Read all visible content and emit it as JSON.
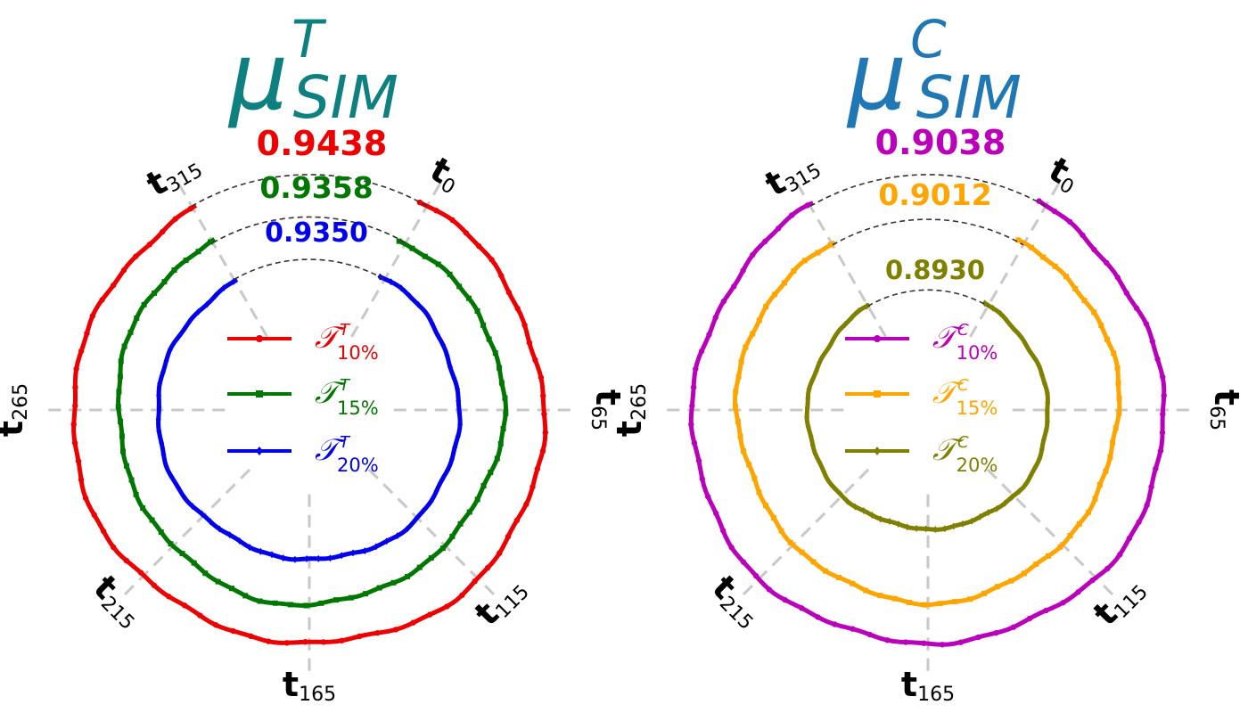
{
  "chart_data": [
    {
      "type": "polar-line",
      "panel": "left",
      "title": {
        "symbol": "μ",
        "superscript": "T",
        "subscript": "SIM"
      },
      "title_color": "#0f8080",
      "angular_ticks": [
        {
          "main": "t",
          "sub": "0"
        },
        {
          "main": "t",
          "sub": "65"
        },
        {
          "main": "t",
          "sub": "115"
        },
        {
          "main": "t",
          "sub": "165"
        },
        {
          "main": "t",
          "sub": "215"
        },
        {
          "main": "t",
          "sub": "265"
        },
        {
          "main": "t",
          "sub": "315"
        }
      ],
      "series": [
        {
          "name": {
            "symbol": "𝒯",
            "superscript": "T",
            "subscript": "10%"
          },
          "score": "0.9438",
          "color": "#ee0000",
          "marker": "circle",
          "radius": 1.0
        },
        {
          "name": {
            "symbol": "𝒯",
            "superscript": "T",
            "subscript": "15%"
          },
          "score": "0.9358",
          "color": "#007700",
          "marker": "square",
          "radius": 0.82
        },
        {
          "name": {
            "symbol": "𝒯",
            "superscript": "T",
            "subscript": "20%"
          },
          "score": "0.9350",
          "color": "#0000ee",
          "marker": "diamond",
          "radius": 0.64
        }
      ]
    },
    {
      "type": "polar-line",
      "panel": "right",
      "title": {
        "symbol": "μ",
        "superscript": "C",
        "subscript": "SIM"
      },
      "title_color": "#1f77b4",
      "angular_ticks": [
        {
          "main": "t",
          "sub": "0"
        },
        {
          "main": "t",
          "sub": "65"
        },
        {
          "main": "t",
          "sub": "115"
        },
        {
          "main": "t",
          "sub": "165"
        },
        {
          "main": "t",
          "sub": "215"
        },
        {
          "main": "t",
          "sub": "265"
        },
        {
          "main": "t",
          "sub": "315"
        }
      ],
      "series": [
        {
          "name": {
            "symbol": "𝒯",
            "superscript": "C",
            "subscript": "10%"
          },
          "score": "0.9038",
          "color": "#bb00bb",
          "marker": "circle",
          "radius": 1.0
        },
        {
          "name": {
            "symbol": "𝒯",
            "superscript": "C",
            "subscript": "15%"
          },
          "score": "0.9012",
          "color": "#ffa500",
          "marker": "square",
          "radius": 0.81
        },
        {
          "name": {
            "symbol": "𝒯",
            "superscript": "C",
            "subscript": "20%"
          },
          "score": "0.8930",
          "color": "#808000",
          "marker": "diamond",
          "radius": 0.51
        }
      ]
    }
  ]
}
